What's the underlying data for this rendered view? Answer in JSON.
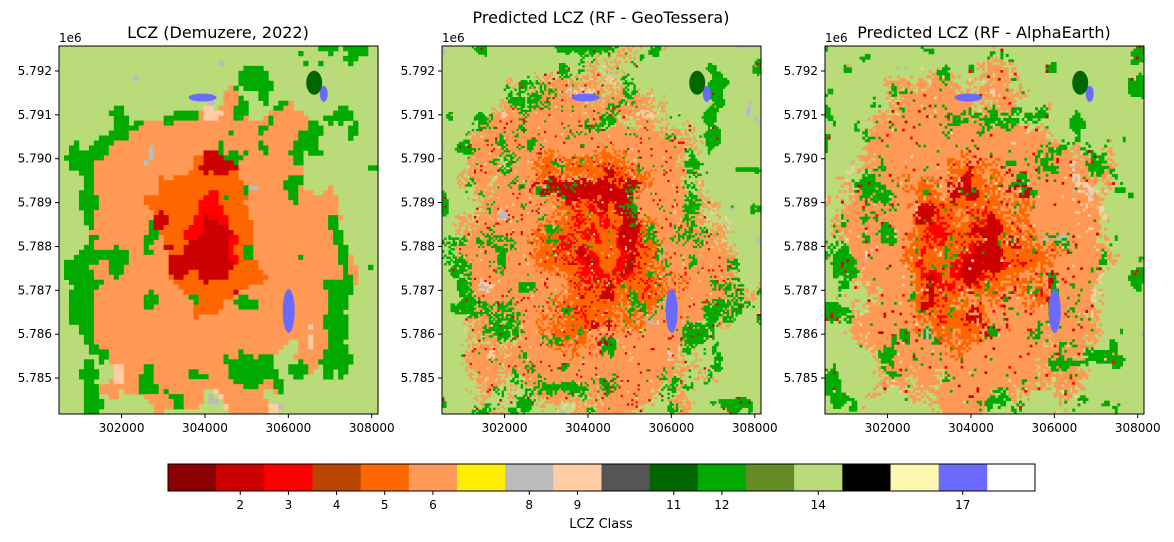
{
  "chart_data": [
    {
      "type": "heatmap",
      "title": "LCZ (Demuzere, 2022)",
      "x_ticks": [
        302000,
        304000,
        306000,
        308000
      ],
      "y_ticks": [
        5.785,
        5.786,
        5.787,
        5.788,
        5.789,
        5.79,
        5.791,
        5.792
      ],
      "y_offset_label": "1e6",
      "xlim": [
        300500,
        308150
      ],
      "ylim": [
        5.78418,
        5.79257
      ],
      "dominant_classes": [
        14,
        6,
        8,
        12,
        5,
        2,
        3,
        4,
        9,
        11,
        17
      ]
    },
    {
      "type": "heatmap",
      "title": "Predicted LCZ (RF - GeoTessera)",
      "x_ticks": [
        302000,
        304000,
        306000,
        308000
      ],
      "y_ticks": [
        5.785,
        5.786,
        5.787,
        5.788,
        5.789,
        5.79,
        5.791,
        5.792
      ],
      "y_offset_label": "1e6",
      "xlim": [
        300500,
        308150
      ],
      "ylim": [
        5.78418,
        5.79257
      ],
      "dominant_classes": [
        14,
        6,
        5,
        12,
        2,
        3,
        8,
        9,
        11,
        17
      ]
    },
    {
      "type": "heatmap",
      "title": "Predicted LCZ (RF - AlphaEarth)",
      "x_ticks": [
        302000,
        304000,
        306000,
        308000
      ],
      "y_ticks": [
        5.785,
        5.786,
        5.787,
        5.788,
        5.789,
        5.79,
        5.791,
        5.792
      ],
      "y_offset_label": "1e6",
      "xlim": [
        300500,
        308150
      ],
      "ylim": [
        5.78418,
        5.79257
      ],
      "dominant_classes": [
        14,
        6,
        12,
        5,
        2,
        3,
        8,
        9,
        11,
        17
      ]
    }
  ],
  "colorbar": {
    "label": "LCZ Class",
    "colors": [
      "#8b0000",
      "#cc0000",
      "#ff0000",
      "#bb4400",
      "#ff6600",
      "#ff9955",
      "#ffee00",
      "#bbbbbb",
      "#ffcca4",
      "#555555",
      "#006600",
      "#00aa00",
      "#648c26",
      "#b9db79",
      "#000000",
      "#fbf7ae",
      "#6a6aff"
    ],
    "tick_labels": [
      "2",
      "3",
      "4",
      "5",
      "6",
      "8",
      "9",
      "11",
      "12",
      "14",
      "17"
    ],
    "tick_positions": [
      2.0,
      3.0,
      4.0,
      5.0,
      6.0,
      8.0,
      9.0,
      11.0,
      12.0,
      14.0,
      17.0
    ],
    "range": [
      0.5,
      18.5
    ]
  }
}
